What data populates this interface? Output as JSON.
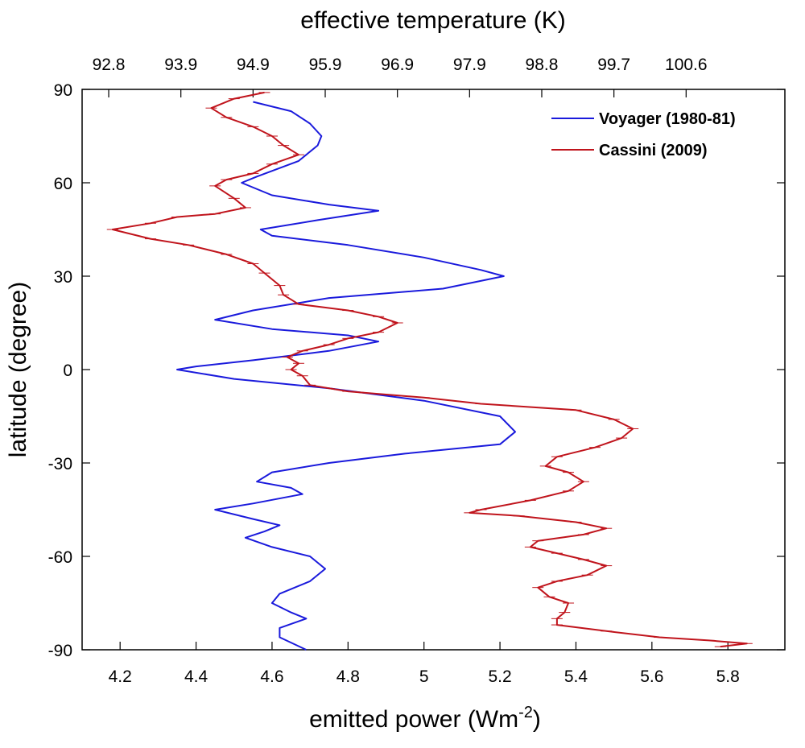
{
  "chart_data": {
    "type": "line",
    "orientation": "x-value-vs-latitude",
    "xlabel_bottom": "emitted power (Wm",
    "xlabel_bottom_superscript": "-2",
    "xlabel_bottom_suffix": ")",
    "xlabel_top": "effective temperature (K)",
    "ylabel": "latitude (degree)",
    "xlim": [
      4.1,
      5.95
    ],
    "ylim": [
      -90,
      90
    ],
    "x_ticks": [
      4.2,
      4.4,
      4.6,
      4.8,
      5.0,
      5.2,
      5.4,
      5.6,
      5.8
    ],
    "x_tick_labels": [
      "4.2",
      "4.4",
      "4.6",
      "4.8",
      "5",
      "5.2",
      "5.4",
      "5.6",
      "5.8"
    ],
    "y_ticks": [
      90,
      60,
      30,
      0,
      -30,
      -60,
      -90
    ],
    "y_tick_labels": [
      "90",
      "60",
      "30",
      "0",
      "-30",
      "-60",
      "-90"
    ],
    "top_ticks": [
      {
        "power": 4.17,
        "label": "92.8"
      },
      {
        "power": 4.36,
        "label": "93.9"
      },
      {
        "power": 4.55,
        "label": "94.9"
      },
      {
        "power": 4.74,
        "label": "95.9"
      },
      {
        "power": 4.93,
        "label": "96.9"
      },
      {
        "power": 5.12,
        "label": "97.9"
      },
      {
        "power": 5.31,
        "label": "98.8"
      },
      {
        "power": 5.5,
        "label": "99.7"
      },
      {
        "power": 5.69,
        "label": "100.6"
      }
    ],
    "grid": false,
    "legend": {
      "placement": "top-right"
    },
    "series": [
      {
        "name": "Voyager (1980-81)",
        "color": "#1a1adc",
        "points": [
          [
            4.55,
            86
          ],
          [
            4.65,
            83
          ],
          [
            4.7,
            79
          ],
          [
            4.73,
            75
          ],
          [
            4.72,
            72
          ],
          [
            4.67,
            67
          ],
          [
            4.56,
            62
          ],
          [
            4.52,
            60
          ],
          [
            4.6,
            56
          ],
          [
            4.75,
            53
          ],
          [
            4.88,
            51
          ],
          [
            4.72,
            48
          ],
          [
            4.57,
            45
          ],
          [
            4.6,
            43
          ],
          [
            4.8,
            40
          ],
          [
            5.0,
            36
          ],
          [
            5.15,
            32
          ],
          [
            5.21,
            30
          ],
          [
            5.05,
            26
          ],
          [
            4.75,
            23
          ],
          [
            4.55,
            19
          ],
          [
            4.45,
            16
          ],
          [
            4.6,
            13
          ],
          [
            4.8,
            11
          ],
          [
            4.88,
            9
          ],
          [
            4.75,
            6
          ],
          [
            4.55,
            3
          ],
          [
            4.4,
            1
          ],
          [
            4.35,
            0
          ],
          [
            4.5,
            -3
          ],
          [
            4.75,
            -6
          ],
          [
            5.0,
            -10
          ],
          [
            5.2,
            -15
          ],
          [
            5.24,
            -20
          ],
          [
            5.2,
            -24
          ],
          [
            4.95,
            -27
          ],
          [
            4.75,
            -30
          ],
          [
            4.6,
            -33
          ],
          [
            4.56,
            -36
          ],
          [
            4.65,
            -38
          ],
          [
            4.68,
            -40
          ],
          [
            4.55,
            -43
          ],
          [
            4.45,
            -45
          ],
          [
            4.55,
            -48
          ],
          [
            4.62,
            -50
          ],
          [
            4.58,
            -52
          ],
          [
            4.53,
            -54
          ],
          [
            4.6,
            -57
          ],
          [
            4.7,
            -60
          ],
          [
            4.74,
            -64
          ],
          [
            4.7,
            -68
          ],
          [
            4.62,
            -72
          ],
          [
            4.6,
            -75
          ],
          [
            4.65,
            -78
          ],
          [
            4.69,
            -80
          ],
          [
            4.62,
            -83
          ],
          [
            4.62,
            -86
          ],
          [
            4.69,
            -90
          ]
        ]
      },
      {
        "name": "Cassini (2009)",
        "color": "#c0141c",
        "points": [
          [
            4.58,
            89
          ],
          [
            4.5,
            87
          ],
          [
            4.44,
            84
          ],
          [
            4.48,
            81
          ],
          [
            4.55,
            78
          ],
          [
            4.6,
            75
          ],
          [
            4.63,
            72
          ],
          [
            4.67,
            69
          ],
          [
            4.6,
            66
          ],
          [
            4.55,
            63
          ],
          [
            4.48,
            61
          ],
          [
            4.45,
            59
          ],
          [
            4.5,
            55
          ],
          [
            4.53,
            52
          ],
          [
            4.45,
            50
          ],
          [
            4.35,
            49
          ],
          [
            4.28,
            47
          ],
          [
            4.18,
            45
          ],
          [
            4.28,
            42
          ],
          [
            4.38,
            40
          ],
          [
            4.48,
            37
          ],
          [
            4.55,
            34
          ],
          [
            4.58,
            31
          ],
          [
            4.62,
            27
          ],
          [
            4.63,
            24
          ],
          [
            4.67,
            21
          ],
          [
            4.8,
            19
          ],
          [
            4.88,
            17
          ],
          [
            4.93,
            15
          ],
          [
            4.88,
            12
          ],
          [
            4.8,
            10
          ],
          [
            4.75,
            8
          ],
          [
            4.68,
            6
          ],
          [
            4.64,
            4
          ],
          [
            4.67,
            2
          ],
          [
            4.65,
            0
          ],
          [
            4.68,
            -2
          ],
          [
            4.7,
            -5
          ],
          [
            4.8,
            -7
          ],
          [
            5.0,
            -9
          ],
          [
            5.15,
            -11
          ],
          [
            5.4,
            -13
          ],
          [
            5.5,
            -16
          ],
          [
            5.55,
            -19
          ],
          [
            5.52,
            -22
          ],
          [
            5.45,
            -25
          ],
          [
            5.35,
            -28
          ],
          [
            5.32,
            -31
          ],
          [
            5.38,
            -33
          ],
          [
            5.42,
            -36
          ],
          [
            5.38,
            -39
          ],
          [
            5.28,
            -42
          ],
          [
            5.15,
            -45
          ],
          [
            5.12,
            -46
          ],
          [
            5.25,
            -47
          ],
          [
            5.4,
            -49
          ],
          [
            5.48,
            -51
          ],
          [
            5.42,
            -53
          ],
          [
            5.3,
            -55
          ],
          [
            5.28,
            -57
          ],
          [
            5.35,
            -59
          ],
          [
            5.42,
            -61
          ],
          [
            5.48,
            -63
          ],
          [
            5.43,
            -66
          ],
          [
            5.35,
            -68
          ],
          [
            5.3,
            -70
          ],
          [
            5.33,
            -73
          ],
          [
            5.38,
            -75
          ],
          [
            5.37,
            -78
          ],
          [
            5.35,
            -80
          ],
          [
            5.35,
            -82
          ],
          [
            5.48,
            -84
          ],
          [
            5.62,
            -86
          ],
          [
            5.75,
            -87
          ],
          [
            5.85,
            -88
          ],
          [
            5.78,
            -89
          ]
        ]
      }
    ]
  }
}
